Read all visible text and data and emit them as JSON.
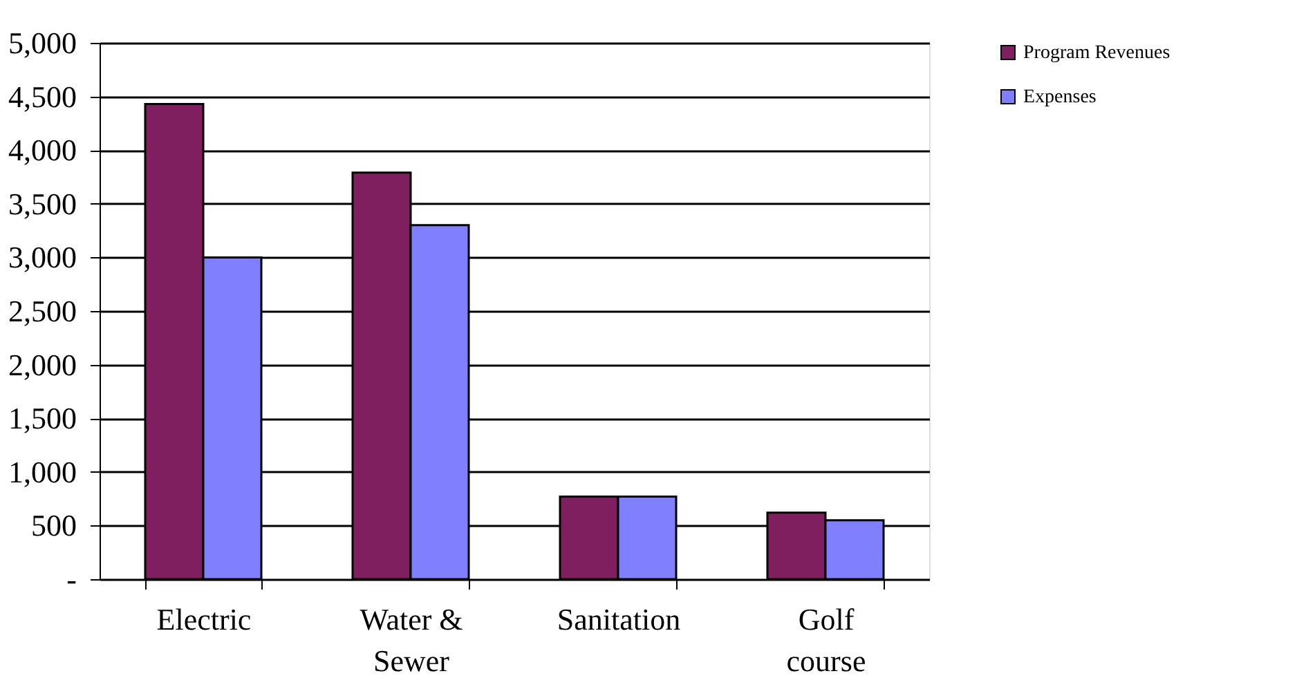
{
  "chart_data": {
    "type": "bar",
    "categories": [
      "Electric",
      "Water & Sewer",
      "Sanitation",
      "Golf course"
    ],
    "series": [
      {
        "name": "Program Revenues",
        "color": "#7f1f5f",
        "values": [
          4430,
          3790,
          770,
          620
        ]
      },
      {
        "name": "Expenses",
        "color": "#8080ff",
        "values": [
          3000,
          3300,
          770,
          550
        ]
      }
    ],
    "ylim": [
      0,
      5000
    ],
    "yticks": [
      {
        "value": 0,
        "label": "-"
      },
      {
        "value": 500,
        "label": "500"
      },
      {
        "value": 1000,
        "label": "1,000"
      },
      {
        "value": 1500,
        "label": "1,500"
      },
      {
        "value": 2000,
        "label": "2,000"
      },
      {
        "value": 2500,
        "label": "2,500"
      },
      {
        "value": 3000,
        "label": "3,000"
      },
      {
        "value": 3500,
        "label": "3,500"
      },
      {
        "value": 4000,
        "label": "4,000"
      },
      {
        "value": 4500,
        "label": "4,500"
      },
      {
        "value": 5000,
        "label": "5,000"
      }
    ],
    "grid": "y",
    "legend": "top right"
  }
}
